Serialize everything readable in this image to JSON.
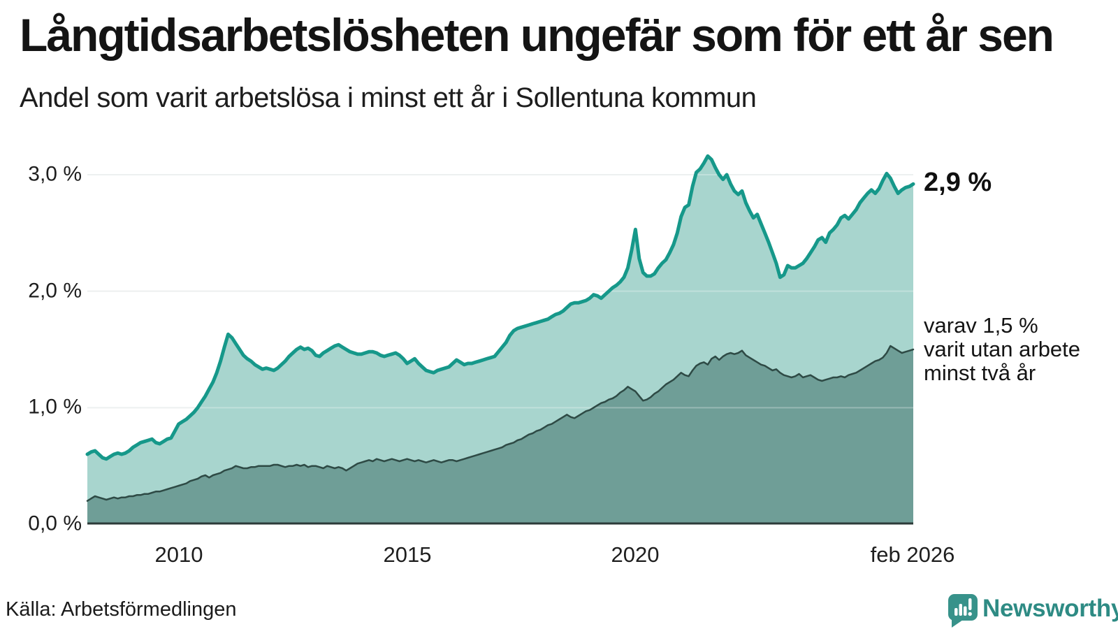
{
  "header": {
    "title": "Långtidsarbetslösheten ungefär som för ett år sen",
    "subtitle": "Andel som varit arbetslösa i minst ett år i Sollentuna kommun"
  },
  "source": {
    "label": "Källa: Arbetsförmedlingen"
  },
  "branding": {
    "wordmark": "Newsworthy",
    "brand_color": "#2e8b84",
    "icon": "newsworthy-speech-bubble-bar-chart"
  },
  "chart_data": {
    "type": "area",
    "title": "Långtidsarbetslösheten ungefär som för ett år sen",
    "subtitle": "Andel som varit arbetslösa i minst ett år i Sollentuna kommun",
    "xlim": [
      2008.0,
      2026.083
    ],
    "ylim": [
      0,
      3.3
    ],
    "grid": "horizontal",
    "y_ticks": [
      {
        "label": "0,0 %",
        "v": 0
      },
      {
        "label": "1,0 %",
        "v": 1
      },
      {
        "label": "2,0 %",
        "v": 2
      },
      {
        "label": "3,0 %",
        "v": 3
      }
    ],
    "x_ticks": [
      {
        "label": "2010",
        "t": 2010
      },
      {
        "label": "2015",
        "t": 2015
      },
      {
        "label": "2020",
        "t": 2020
      },
      {
        "label": "feb 2026",
        "t": 2026.083
      }
    ],
    "annotations": {
      "end_total": "2,9 %",
      "end_two": [
        "varav 1,5 %",
        "varit utan arbete",
        "minst två år"
      ]
    },
    "colors": {
      "line_total": "#16988a",
      "fill_total": "#a8d5ce",
      "line_two": "#2e4a45",
      "fill_two": "#6f9e97",
      "gridline": "#e7eaea",
      "baseline": "#2d3b39"
    },
    "series": [
      {
        "name": "Andel arbetslösa minst ett år",
        "unit": "%",
        "start_year": 2008,
        "step_months": 1,
        "end_value_label": "2,9 %",
        "values": [
          0.6,
          0.62,
          0.63,
          0.6,
          0.57,
          0.56,
          0.58,
          0.6,
          0.61,
          0.6,
          0.61,
          0.63,
          0.66,
          0.68,
          0.7,
          0.71,
          0.72,
          0.73,
          0.7,
          0.69,
          0.71,
          0.73,
          0.74,
          0.8,
          0.86,
          0.88,
          0.9,
          0.93,
          0.96,
          1.0,
          1.05,
          1.1,
          1.16,
          1.22,
          1.3,
          1.4,
          1.52,
          1.63,
          1.6,
          1.55,
          1.5,
          1.45,
          1.42,
          1.4,
          1.37,
          1.35,
          1.33,
          1.34,
          1.33,
          1.32,
          1.34,
          1.37,
          1.4,
          1.44,
          1.47,
          1.5,
          1.52,
          1.5,
          1.51,
          1.49,
          1.45,
          1.44,
          1.47,
          1.49,
          1.51,
          1.53,
          1.54,
          1.52,
          1.5,
          1.48,
          1.47,
          1.46,
          1.46,
          1.47,
          1.48,
          1.48,
          1.47,
          1.45,
          1.44,
          1.45,
          1.46,
          1.47,
          1.45,
          1.42,
          1.38,
          1.4,
          1.42,
          1.38,
          1.35,
          1.32,
          1.31,
          1.3,
          1.32,
          1.33,
          1.34,
          1.35,
          1.38,
          1.41,
          1.39,
          1.37,
          1.38,
          1.38,
          1.39,
          1.4,
          1.41,
          1.42,
          1.43,
          1.44,
          1.48,
          1.52,
          1.56,
          1.62,
          1.66,
          1.68,
          1.69,
          1.7,
          1.71,
          1.72,
          1.73,
          1.74,
          1.75,
          1.76,
          1.78,
          1.8,
          1.81,
          1.83,
          1.86,
          1.89,
          1.9,
          1.9,
          1.91,
          1.92,
          1.94,
          1.97,
          1.96,
          1.94,
          1.97,
          2.0,
          2.03,
          2.05,
          2.08,
          2.12,
          2.2,
          2.35,
          2.53,
          2.28,
          2.16,
          2.13,
          2.13,
          2.15,
          2.2,
          2.24,
          2.27,
          2.33,
          2.4,
          2.5,
          2.64,
          2.72,
          2.74,
          2.9,
          3.02,
          3.05,
          3.1,
          3.16,
          3.13,
          3.06,
          3.0,
          2.96,
          3.0,
          2.92,
          2.86,
          2.83,
          2.86,
          2.76,
          2.69,
          2.63,
          2.66,
          2.58,
          2.5,
          2.42,
          2.33,
          2.24,
          2.12,
          2.14,
          2.22,
          2.2,
          2.2,
          2.22,
          2.24,
          2.28,
          2.33,
          2.38,
          2.44,
          2.46,
          2.42,
          2.5,
          2.53,
          2.57,
          2.63,
          2.65,
          2.62,
          2.66,
          2.7,
          2.76,
          2.8,
          2.84,
          2.87,
          2.84,
          2.88,
          2.95,
          3.01,
          2.97,
          2.9,
          2.84,
          2.87,
          2.89,
          2.9,
          2.92
        ]
      },
      {
        "name": "varav arbetslösa minst två år",
        "unit": "%",
        "start_year": 2008,
        "step_months": 1,
        "end_value_label": "1,5 %",
        "values": [
          0.2,
          0.22,
          0.24,
          0.23,
          0.22,
          0.21,
          0.22,
          0.23,
          0.22,
          0.23,
          0.23,
          0.24,
          0.24,
          0.25,
          0.25,
          0.26,
          0.26,
          0.27,
          0.28,
          0.28,
          0.29,
          0.3,
          0.31,
          0.32,
          0.33,
          0.34,
          0.35,
          0.37,
          0.38,
          0.39,
          0.41,
          0.42,
          0.4,
          0.42,
          0.43,
          0.44,
          0.46,
          0.47,
          0.48,
          0.5,
          0.49,
          0.48,
          0.48,
          0.49,
          0.49,
          0.5,
          0.5,
          0.5,
          0.5,
          0.51,
          0.51,
          0.5,
          0.49,
          0.5,
          0.5,
          0.51,
          0.5,
          0.51,
          0.49,
          0.5,
          0.5,
          0.49,
          0.48,
          0.5,
          0.49,
          0.48,
          0.49,
          0.48,
          0.46,
          0.48,
          0.5,
          0.52,
          0.53,
          0.54,
          0.55,
          0.54,
          0.56,
          0.55,
          0.54,
          0.55,
          0.56,
          0.55,
          0.54,
          0.55,
          0.56,
          0.55,
          0.54,
          0.55,
          0.54,
          0.53,
          0.54,
          0.55,
          0.54,
          0.53,
          0.54,
          0.55,
          0.55,
          0.54,
          0.55,
          0.56,
          0.57,
          0.58,
          0.59,
          0.6,
          0.61,
          0.62,
          0.63,
          0.64,
          0.65,
          0.66,
          0.68,
          0.69,
          0.7,
          0.72,
          0.73,
          0.75,
          0.77,
          0.78,
          0.8,
          0.81,
          0.83,
          0.85,
          0.86,
          0.88,
          0.9,
          0.92,
          0.94,
          0.92,
          0.91,
          0.93,
          0.95,
          0.97,
          0.98,
          1.0,
          1.02,
          1.04,
          1.05,
          1.07,
          1.08,
          1.1,
          1.13,
          1.15,
          1.18,
          1.16,
          1.14,
          1.1,
          1.06,
          1.07,
          1.09,
          1.12,
          1.14,
          1.17,
          1.2,
          1.22,
          1.24,
          1.27,
          1.3,
          1.28,
          1.27,
          1.32,
          1.36,
          1.38,
          1.39,
          1.37,
          1.42,
          1.44,
          1.41,
          1.44,
          1.46,
          1.47,
          1.46,
          1.47,
          1.49,
          1.45,
          1.43,
          1.41,
          1.39,
          1.37,
          1.36,
          1.34,
          1.32,
          1.33,
          1.3,
          1.28,
          1.27,
          1.26,
          1.27,
          1.29,
          1.26,
          1.27,
          1.28,
          1.26,
          1.24,
          1.23,
          1.24,
          1.25,
          1.26,
          1.26,
          1.27,
          1.26,
          1.28,
          1.29,
          1.3,
          1.32,
          1.34,
          1.36,
          1.38,
          1.4,
          1.41,
          1.43,
          1.47,
          1.53,
          1.51,
          1.49,
          1.47,
          1.48,
          1.49,
          1.5
        ]
      }
    ]
  }
}
